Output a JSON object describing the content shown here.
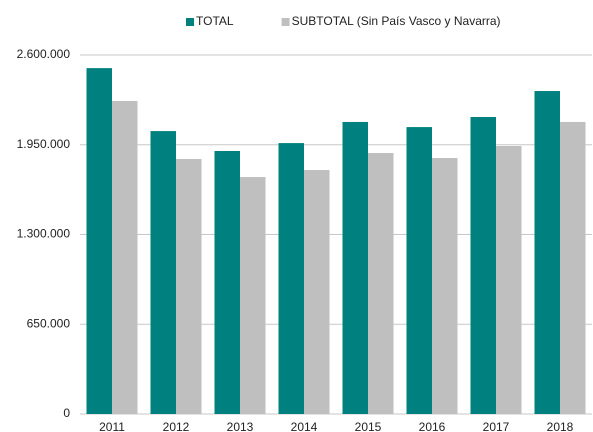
{
  "chart_data": {
    "type": "bar",
    "categories": [
      "2011",
      "2012",
      "2013",
      "2014",
      "2015",
      "2016",
      "2017",
      "2018"
    ],
    "series": [
      {
        "name": "TOTAL",
        "color": "#00807f",
        "values": [
          2505000,
          2049000,
          1905000,
          1962000,
          2115000,
          2078000,
          2151000,
          2339000
        ]
      },
      {
        "name": "SUBTOTAL (Sin País Vasco y Navarra)",
        "color": "#bfbfbf",
        "values": [
          2267000,
          1847000,
          1716000,
          1767000,
          1890000,
          1854000,
          1941000,
          2115000
        ]
      }
    ],
    "ylim": [
      0,
      2600000
    ],
    "yticks": [
      0,
      {
        "value": 650000,
        "label": "650.000"
      },
      {
        "value": 1300000,
        "label": "1.300.000"
      },
      {
        "value": 1950000,
        "label": "1.950.000"
      },
      {
        "value": 2600000,
        "label": "2.600.000"
      }
    ],
    "grid": true,
    "legend": "top"
  }
}
